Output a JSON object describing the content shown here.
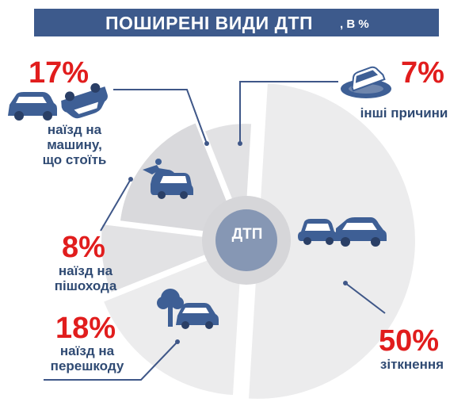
{
  "title": "ПОШИРЕНІ ВИДИ ДТП",
  "unit": ", В %",
  "center_label": "ДТП",
  "colors": {
    "title_bg": "#3d5a8c",
    "percent": "#e11d1d",
    "label": "#2f4a73",
    "slice_light": "#ececed",
    "slice_mid": "#e2e2e4",
    "slice_dark": "#d9d9dc",
    "hub": "#8697b4",
    "leader": "#3f5788",
    "icon_car": "#3e5f95"
  },
  "chart_data": {
    "type": "pie",
    "title": "ПОШИРЕНІ ВИДИ ДТП",
    "unit": "%",
    "slices": [
      {
        "label": "зіткнення",
        "value": 50,
        "icon": "car-collision-icon"
      },
      {
        "label": "наїзд на перешкоду",
        "value": 18,
        "icon": "car-hits-tree-icon"
      },
      {
        "label": "наїзд на пішохода",
        "value": 8,
        "icon": "car-hits-pedestrian-icon"
      },
      {
        "label": "наїзд на машину, що стоїть",
        "value": 17,
        "icon": "car-hits-parked-car-icon"
      },
      {
        "label": "інші причини",
        "value": 7,
        "icon": "car-in-water-icon"
      }
    ]
  },
  "callouts": {
    "collision": {
      "percent": "50%",
      "label": "зіткнення"
    },
    "obstacle": {
      "percent": "18%",
      "line1": "наїзд на",
      "line2": "перешкоду"
    },
    "pedestrian": {
      "percent": "8%",
      "line1": "наїзд на",
      "line2": "пішохода"
    },
    "parked": {
      "percent": "17%",
      "line1": "наїзд на",
      "line2": "машину,",
      "line3": "що стоїть"
    },
    "other": {
      "percent": "7%",
      "label": "інші причини"
    }
  }
}
